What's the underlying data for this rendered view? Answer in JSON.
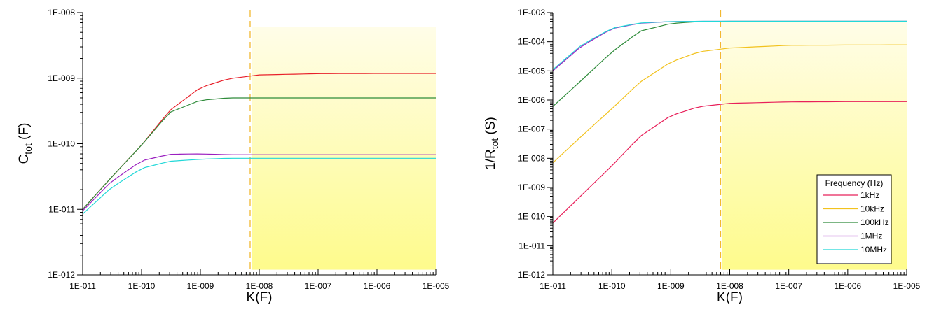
{
  "chart_data": [
    {
      "type": "line",
      "scale": {
        "x": "log",
        "y": "log"
      },
      "xlabel": "K(F)",
      "ylabel_main": "C",
      "ylabel_sub": "tot",
      "ylabel_unit": " (F)",
      "xlim": [
        1e-11,
        1e-05
      ],
      "ylim": [
        1e-12,
        1e-08
      ],
      "x_ticks": [
        "1E-011",
        "1E-010",
        "1E-009",
        "1E-008",
        "1E-007",
        "1E-006",
        "1E-005"
      ],
      "y_ticks": [
        "1E-012",
        "1E-011",
        "1E-010",
        "1E-009",
        "1E-008"
      ],
      "dashed_line_x": 7e-09,
      "shaded_region": {
        "x": [
          7.5e-09,
          1e-05
        ],
        "y": [
          1.2e-12,
          6e-09
        ]
      },
      "x": [
        1e-11,
        3e-11,
        1e-10,
        3e-10,
        1e-09,
        3e-09,
        1e-08,
        1e-07,
        1e-06,
        1e-05
      ],
      "series": [
        {
          "color": "#e8202a",
          "values": [
            1e-11,
            3e-11,
            9.5e-11,
            3.2e-10,
            7.2e-10,
            9.8e-10,
            1.12e-09,
            1.17e-09,
            1.18e-09,
            1.18e-09
          ]
        },
        {
          "color": "#2e8b3a",
          "values": [
            1e-11,
            3e-11,
            9.5e-11,
            3e-10,
            4.6e-10,
            5e-10,
            5e-10,
            5e-10,
            5e-10,
            5e-10
          ]
        },
        {
          "color": "#9a1fc0",
          "values": [
            9.5e-12,
            2.6e-11,
            5.5e-11,
            6.9e-11,
            7e-11,
            6.8e-11,
            6.8e-11,
            6.8e-11,
            6.8e-11,
            6.8e-11
          ]
        },
        {
          "color": "#22d8d8",
          "values": [
            8.5e-12,
            2.1e-11,
            4.2e-11,
            5.4e-11,
            5.8e-11,
            6e-11,
            6e-11,
            6e-11,
            6e-11,
            6e-11
          ]
        }
      ]
    },
    {
      "type": "line",
      "scale": {
        "x": "log",
        "y": "log"
      },
      "xlabel": "K(F)",
      "ylabel_main": "1/R",
      "ylabel_sub": "tot",
      "ylabel_unit": " (S)",
      "xlim": [
        1e-11,
        1e-05
      ],
      "ylim": [
        1e-12,
        0.001
      ],
      "x_ticks": [
        "1E-011",
        "1E-010",
        "1E-009",
        "1E-008",
        "1E-007",
        "1E-006",
        "1E-005"
      ],
      "y_ticks": [
        "1E-012",
        "1E-011",
        "1E-010",
        "1E-009",
        "1E-008",
        "1E-007",
        "1E-006",
        "1E-005",
        "1E-004",
        "1E-003"
      ],
      "dashed_line_x": 7e-09,
      "shaded_region": {
        "x": [
          7.5e-09,
          1e-05
        ],
        "y": [
          1.5e-12,
          0.0005
        ]
      },
      "legend": {
        "title": "Frequency (Hz)",
        "position": "bottom-right"
      },
      "x": [
        1e-11,
        3e-11,
        1e-10,
        3e-10,
        1e-09,
        3e-09,
        1e-08,
        1e-07,
        1e-06,
        1e-05
      ],
      "series": [
        {
          "name": "1kHz",
          "color": "#e8205a",
          "values": [
            6e-11,
            5.2e-10,
            5.5e-09,
            5.6e-08,
            2.9e-07,
            5.9e-07,
            7.7e-07,
            8.6e-07,
            8.8e-07,
            8.8e-07
          ]
        },
        {
          "name": "10kHz",
          "color": "#f2c21e",
          "values": [
            7e-09,
            5.5e-08,
            5e-07,
            4.1e-06,
            2e-05,
            4.5e-05,
            6.1e-05,
            7.5e-05,
            7.7e-05,
            7.8e-05
          ]
        },
        {
          "name": "100kHz",
          "color": "#2e8b3a",
          "values": [
            6e-07,
            4.6e-06,
            4.4e-05,
            0.00023,
            0.00042,
            0.00049,
            0.0005,
            0.0005,
            0.0005,
            0.0005
          ]
        },
        {
          "name": "1MHz",
          "color": "#9a1fc0",
          "values": [
            1e-05,
            6.8e-05,
            0.00028,
            0.00043,
            0.00049,
            0.0005,
            0.0005,
            0.0005,
            0.0005,
            0.0005
          ]
        },
        {
          "name": "10MHz",
          "color": "#22d8d8",
          "values": [
            1.1e-05,
            7.5e-05,
            0.00029,
            0.00044,
            0.00049,
            0.0005,
            0.0005,
            0.0005,
            0.0005,
            0.0005
          ]
        }
      ]
    }
  ],
  "colors": {
    "dashed_line": "#f2b830",
    "shade_top": "#fffde8",
    "shade_bottom": "#fefb8c"
  }
}
